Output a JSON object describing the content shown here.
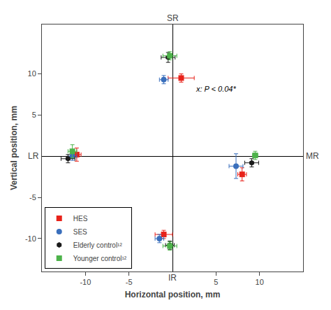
{
  "chart_data": {
    "type": "scatter",
    "xlabel": "Horizontal position, mm",
    "ylabel": "Vertical position, mm",
    "xlim": [
      -15,
      15
    ],
    "ylim": [
      -14,
      16
    ],
    "xticks": [
      -10,
      -5,
      5,
      10
    ],
    "yticks": [
      -10,
      -5,
      5,
      10
    ],
    "grid": false,
    "legend": "lower left",
    "edge_labels": {
      "top": "SR",
      "bottom": "IR",
      "left": "LR",
      "right": "MR"
    },
    "annotations": [
      {
        "text": "x: P < 0.04*",
        "x": 2.5,
        "y": 7.5
      }
    ],
    "series": [
      {
        "name": "HES",
        "color": "#e8221a",
        "marker": "square",
        "x": [
          1.0,
          8.0,
          -11.0,
          -1.0
        ],
        "values": [
          9.5,
          -2.2,
          0.2,
          -9.5
        ],
        "xerr": [
          1.5,
          0.5,
          0.5,
          1.0
        ],
        "yerr": [
          0.5,
          0.8,
          0.8,
          0.5
        ]
      },
      {
        "name": "SES",
        "color": "#3a6fbc",
        "marker": "circle",
        "x": [
          -1.0,
          7.3,
          -11.5,
          -1.5
        ],
        "values": [
          9.3,
          -1.2,
          0.0,
          -10.0
        ],
        "xerr": [
          0.5,
          0.8,
          0.5,
          0.5
        ],
        "yerr": [
          0.5,
          1.5,
          0.5,
          0.5
        ]
      },
      {
        "name": "Elderly control¹²",
        "color": "#1a1a1a",
        "marker": "hexagon",
        "x": [
          -0.5,
          9.1,
          -12.0,
          -0.3
        ],
        "values": [
          12.0,
          -0.8,
          -0.3,
          -10.8
        ],
        "xerr": [
          0.8,
          0.8,
          0.8,
          0.5
        ],
        "yerr": [
          0.6,
          0.5,
          0.5,
          0.5
        ]
      },
      {
        "name": "Younger control¹²",
        "color": "#4db34a",
        "marker": "square",
        "x": [
          -0.3,
          9.5,
          -11.5,
          -0.3
        ],
        "values": [
          12.2,
          0.1,
          0.6,
          -10.9
        ],
        "xerr": [
          0.8,
          0.3,
          0.5,
          0.8
        ],
        "yerr": [
          0.5,
          0.5,
          0.8,
          0.5
        ]
      }
    ]
  }
}
